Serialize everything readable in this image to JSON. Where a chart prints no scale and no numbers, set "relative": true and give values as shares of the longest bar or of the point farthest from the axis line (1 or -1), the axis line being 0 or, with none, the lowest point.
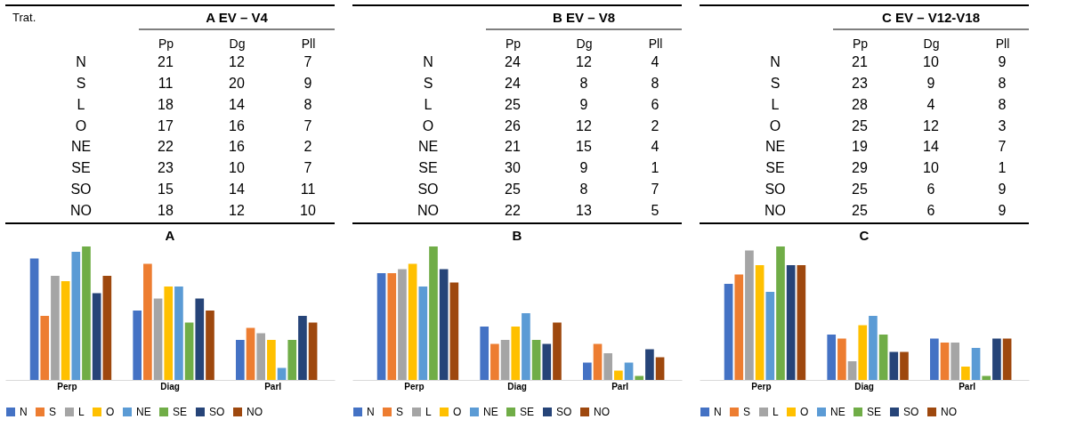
{
  "chart_data": [
    {
      "type": "heatmap",
      "title": "A EV – V4",
      "ylabel": "Trat.",
      "categories": [
        "Pp",
        "Dg",
        "Pll"
      ],
      "y_categories": [
        "N",
        "S",
        "L",
        "O",
        "NE",
        "SE",
        "SO",
        "NO"
      ],
      "data_labels": true,
      "cells": [
        [
          21,
          12,
          7
        ],
        [
          11,
          20,
          9
        ],
        [
          18,
          14,
          8
        ],
        [
          17,
          16,
          7
        ],
        [
          22,
          16,
          2
        ],
        [
          23,
          10,
          7
        ],
        [
          15,
          14,
          11
        ],
        [
          18,
          12,
          10
        ]
      ]
    },
    {
      "type": "heatmap",
      "title": "B EV – V8",
      "categories": [
        "Pp",
        "Dg",
        "Pll"
      ],
      "y_categories": [
        "N",
        "S",
        "L",
        "O",
        "NE",
        "SE",
        "SO",
        "NO"
      ],
      "data_labels": true,
      "cells": [
        [
          24,
          12,
          4
        ],
        [
          24,
          8,
          8
        ],
        [
          25,
          9,
          6
        ],
        [
          26,
          12,
          2
        ],
        [
          21,
          15,
          4
        ],
        [
          30,
          9,
          1
        ],
        [
          25,
          8,
          7
        ],
        [
          22,
          13,
          5
        ]
      ]
    },
    {
      "type": "heatmap",
      "title": "C EV – V12-V18",
      "categories": [
        "Pp",
        "Dg",
        "Pll"
      ],
      "y_categories": [
        "N",
        "S",
        "L",
        "O",
        "NE",
        "SE",
        "SO",
        "NO"
      ],
      "data_labels": true,
      "cells": [
        [
          21,
          10,
          9
        ],
        [
          23,
          9,
          8
        ],
        [
          28,
          4,
          8
        ],
        [
          25,
          12,
          3
        ],
        [
          19,
          14,
          7
        ],
        [
          29,
          10,
          1
        ],
        [
          25,
          6,
          9
        ],
        [
          25,
          6,
          9
        ]
      ]
    },
    {
      "type": "bar",
      "title": "A",
      "categories": [
        "Perp",
        "Diag",
        "Parl"
      ],
      "relative": true,
      "legend": "bottom",
      "grid": false,
      "series": [
        {
          "name": "N",
          "color": "#4472c4",
          "values": [
            0.91,
            0.52,
            0.3
          ]
        },
        {
          "name": "S",
          "color": "#ed7d31",
          "values": [
            0.48,
            0.87,
            0.39
          ]
        },
        {
          "name": "L",
          "color": "#a5a5a5",
          "values": [
            0.78,
            0.61,
            0.35
          ]
        },
        {
          "name": "O",
          "color": "#ffc000",
          "values": [
            0.74,
            0.7,
            0.3
          ]
        },
        {
          "name": "NE",
          "color": "#5b9bd5",
          "values": [
            0.96,
            0.7,
            0.09
          ]
        },
        {
          "name": "SE",
          "color": "#70ad47",
          "values": [
            1.0,
            0.43,
            0.3
          ]
        },
        {
          "name": "SO",
          "color": "#264478",
          "values": [
            0.65,
            0.61,
            0.48
          ]
        },
        {
          "name": "NO",
          "color": "#9e480e",
          "values": [
            0.78,
            0.52,
            0.43
          ]
        }
      ]
    },
    {
      "type": "bar",
      "title": "B",
      "categories": [
        "Perp",
        "Diag",
        "Parl"
      ],
      "relative": true,
      "legend": "bottom",
      "grid": false,
      "series": [
        {
          "name": "N",
          "color": "#4472c4",
          "values": [
            0.8,
            0.4,
            0.13
          ]
        },
        {
          "name": "S",
          "color": "#ed7d31",
          "values": [
            0.8,
            0.27,
            0.27
          ]
        },
        {
          "name": "L",
          "color": "#a5a5a5",
          "values": [
            0.83,
            0.3,
            0.2
          ]
        },
        {
          "name": "O",
          "color": "#ffc000",
          "values": [
            0.87,
            0.4,
            0.07
          ]
        },
        {
          "name": "NE",
          "color": "#5b9bd5",
          "values": [
            0.7,
            0.5,
            0.13
          ]
        },
        {
          "name": "SE",
          "color": "#70ad47",
          "values": [
            1.0,
            0.3,
            0.03
          ]
        },
        {
          "name": "SO",
          "color": "#264478",
          "values": [
            0.83,
            0.27,
            0.23
          ]
        },
        {
          "name": "NO",
          "color": "#9e480e",
          "values": [
            0.73,
            0.43,
            0.17
          ]
        }
      ]
    },
    {
      "type": "bar",
      "title": "C",
      "categories": [
        "Perp",
        "Diag",
        "Parl"
      ],
      "relative": true,
      "legend": "bottom",
      "grid": false,
      "series": [
        {
          "name": "N",
          "color": "#4472c4",
          "values": [
            0.72,
            0.34,
            0.31
          ]
        },
        {
          "name": "S",
          "color": "#ed7d31",
          "values": [
            0.79,
            0.31,
            0.28
          ]
        },
        {
          "name": "L",
          "color": "#a5a5a5",
          "values": [
            0.97,
            0.14,
            0.28
          ]
        },
        {
          "name": "O",
          "color": "#ffc000",
          "values": [
            0.86,
            0.41,
            0.1
          ]
        },
        {
          "name": "NE",
          "color": "#5b9bd5",
          "values": [
            0.66,
            0.48,
            0.24
          ]
        },
        {
          "name": "SE",
          "color": "#70ad47",
          "values": [
            1.0,
            0.34,
            0.03
          ]
        },
        {
          "name": "SO",
          "color": "#264478",
          "values": [
            0.86,
            0.21,
            0.31
          ]
        },
        {
          "name": "NO",
          "color": "#9e480e",
          "values": [
            0.86,
            0.21,
            0.31
          ]
        }
      ]
    }
  ]
}
